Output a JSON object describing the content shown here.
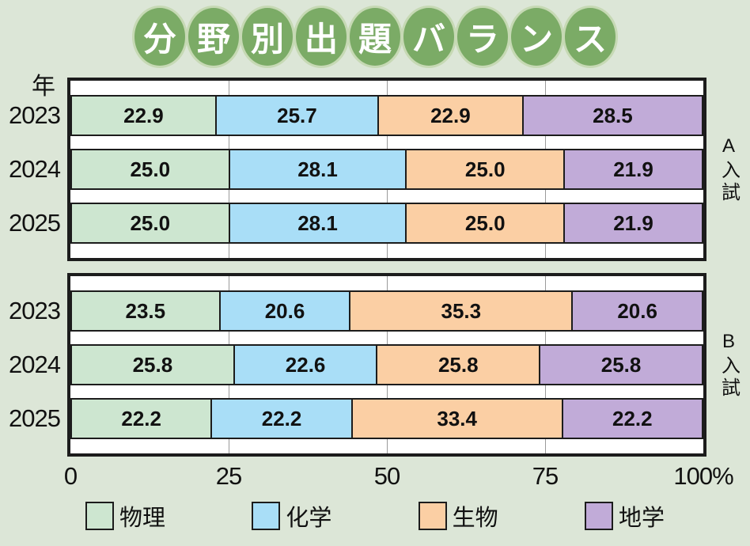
{
  "title": {
    "text": "分野別出題バランス",
    "chars": [
      "分",
      "野",
      "別",
      "出",
      "題",
      "バ",
      "ラ",
      "ン",
      "ス"
    ]
  },
  "colors": {
    "page_bg": "#dce6d7",
    "badge_green": "#7bab66",
    "badge_ring": "#c6d9b4",
    "frame": "#1c1c1c",
    "gridline": "#9a9a9a",
    "series": [
      "#cde6d0",
      "#a9def7",
      "#fbcfa4",
      "#c1abd8"
    ]
  },
  "axis": {
    "unit_label": "年",
    "tick_labels": [
      "0",
      "25",
      "50",
      "75",
      "100%"
    ],
    "tick_values": [
      0,
      25,
      50,
      75,
      100
    ]
  },
  "legend": [
    {
      "label": "物理"
    },
    {
      "label": "化学"
    },
    {
      "label": "生物"
    },
    {
      "label": "地学"
    }
  ],
  "chart_data": [
    {
      "type": "bar",
      "stacked": true,
      "orientation": "horizontal",
      "title": "A入試",
      "categories": [
        "2023",
        "2024",
        "2025"
      ],
      "series": [
        {
          "name": "物理",
          "values": [
            22.9,
            25.0,
            25.0
          ]
        },
        {
          "name": "化学",
          "values": [
            25.7,
            28.1,
            28.1
          ]
        },
        {
          "name": "生物",
          "values": [
            22.9,
            25.0,
            25.0
          ]
        },
        {
          "name": "地学",
          "values": [
            28.5,
            21.9,
            21.9
          ]
        }
      ],
      "xlim": [
        0,
        100
      ],
      "xticks": [
        0,
        25,
        50,
        75,
        100
      ],
      "xlabel": "%",
      "ylabel": "年",
      "grid": true,
      "legend_position": "bottom"
    },
    {
      "type": "bar",
      "stacked": true,
      "orientation": "horizontal",
      "title": "B入試",
      "categories": [
        "2023",
        "2024",
        "2025"
      ],
      "series": [
        {
          "name": "物理",
          "values": [
            23.5,
            25.8,
            22.2
          ]
        },
        {
          "name": "化学",
          "values": [
            20.6,
            22.6,
            22.2
          ]
        },
        {
          "name": "生物",
          "values": [
            35.3,
            25.8,
            33.4
          ]
        },
        {
          "name": "地学",
          "values": [
            20.6,
            25.8,
            22.2
          ]
        }
      ],
      "xlim": [
        0,
        100
      ],
      "xticks": [
        0,
        25,
        50,
        75,
        100
      ],
      "xlabel": "%",
      "ylabel": "年",
      "grid": true,
      "legend_position": "bottom"
    }
  ]
}
